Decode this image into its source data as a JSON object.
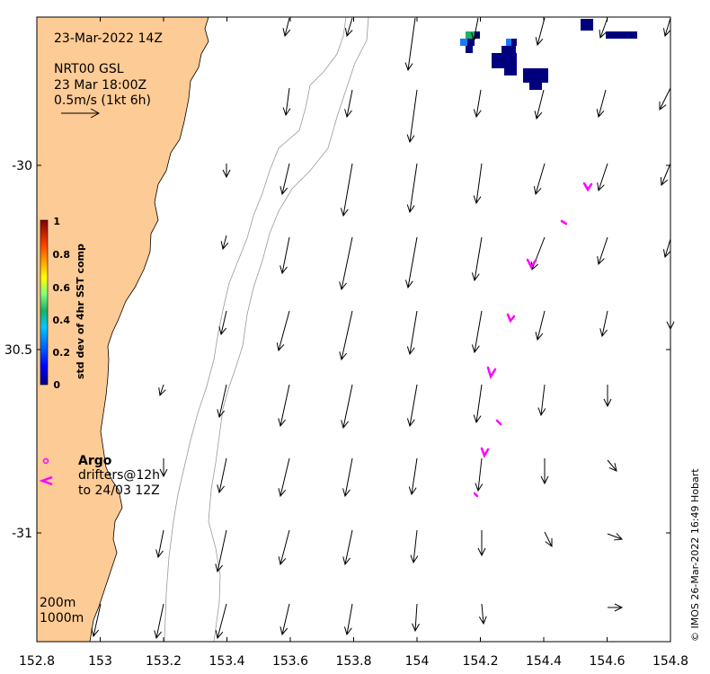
{
  "map": {
    "date_title": "23-Mar-2022 14Z",
    "product": "NRT00 GSL",
    "product_time": "23 Mar 18:00Z",
    "arrow_scale": "0.5m/s (1kt 6h)",
    "x_ticks": [
      "152.8",
      "153",
      "153.2",
      "153.4",
      "153.6",
      "153.8",
      "154",
      "154.2",
      "154.4",
      "154.6",
      "154.8"
    ],
    "y_ticks": [
      "-30",
      "30.5",
      "-31"
    ],
    "colorbar": {
      "label": "std dev of 4hr SST comp",
      "ticks": [
        "1",
        "0.8",
        "0.6",
        "0.4",
        "0.2",
        "0"
      ]
    },
    "legend": {
      "argo": "Argo",
      "drifters_line1": "drifters@12h",
      "drifters_line2": "to 24/03 12Z"
    },
    "contour_labels": [
      "200m",
      "1000m"
    ],
    "credit": "© IMOS 26-Mar-2022 16:49 Hobart"
  },
  "colors": {
    "land": "#fdcb95",
    "high_std": "#00007f",
    "argo_drifter": "#ff00ff"
  }
}
